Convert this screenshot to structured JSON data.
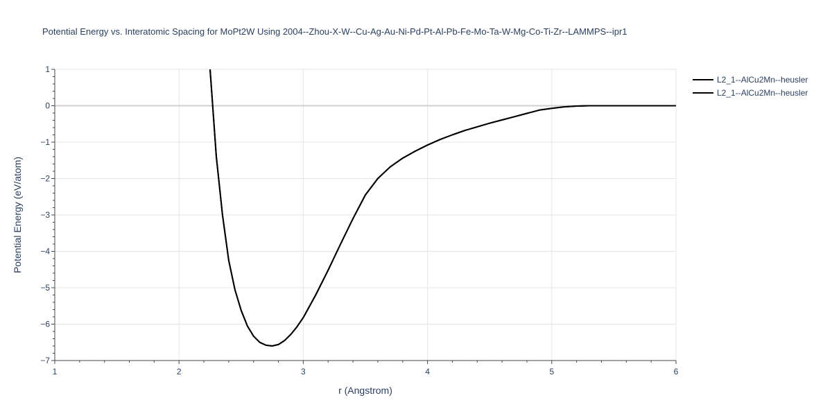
{
  "chart_data": {
    "type": "line",
    "title": "Potential Energy vs. Interatomic Spacing for MoPt2W Using 2004--Zhou-X-W--Cu-Ag-Au-Ni-Pd-Pt-Al-Pb-Fe-Mo-Ta-W-Mg-Co-Ti-Zr--LAMMPS--ipr1",
    "xlabel": "r (Angstrom)",
    "ylabel": "Potential Energy (eV/atom)",
    "xlim": [
      1,
      6
    ],
    "ylim": [
      -7,
      1
    ],
    "xticks": [
      "1",
      "2",
      "3",
      "4",
      "5",
      "6"
    ],
    "yticks": [
      "1",
      "0",
      "−1",
      "−2",
      "−3",
      "−4",
      "−5",
      "−6",
      "−7"
    ],
    "grid": true,
    "legend_position": "top-right",
    "colors": {
      "line": "#000000",
      "grid": "#e5e5e5",
      "zeroline": "#d0d0d0",
      "text": "#2a3f5f"
    },
    "series": [
      {
        "name": "L2_1--AlCu2Mn--heusler",
        "x": [
          2.25,
          2.3,
          2.35,
          2.4,
          2.45,
          2.5,
          2.55,
          2.6,
          2.65,
          2.7,
          2.75,
          2.8,
          2.85,
          2.9,
          2.95,
          3.0,
          3.1,
          3.2,
          3.3,
          3.4,
          3.5,
          3.6,
          3.7,
          3.8,
          3.9,
          4.0,
          4.1,
          4.2,
          4.3,
          4.4,
          4.5,
          4.6,
          4.7,
          4.8,
          4.9,
          5.0,
          5.1,
          5.2,
          5.3,
          5.4,
          5.5,
          5.6,
          5.8,
          6.0
        ],
        "y": [
          1.0,
          -1.4,
          -3.0,
          -4.25,
          -5.05,
          -5.62,
          -6.05,
          -6.33,
          -6.5,
          -6.58,
          -6.6,
          -6.56,
          -6.45,
          -6.28,
          -6.07,
          -5.82,
          -5.2,
          -4.52,
          -3.8,
          -3.1,
          -2.45,
          -2.0,
          -1.68,
          -1.44,
          -1.25,
          -1.08,
          -0.93,
          -0.8,
          -0.68,
          -0.58,
          -0.48,
          -0.39,
          -0.3,
          -0.21,
          -0.12,
          -0.07,
          -0.03,
          -0.01,
          0.0,
          0.0,
          0.0,
          0.0,
          0.0,
          0.0
        ]
      },
      {
        "name": "L2_1--AlCu2Mn--heusler",
        "x": [
          2.25,
          2.3,
          2.35,
          2.4,
          2.45,
          2.5,
          2.55,
          2.6,
          2.65,
          2.7,
          2.75,
          2.8,
          2.85,
          2.9,
          2.95,
          3.0,
          3.1,
          3.2,
          3.3,
          3.4,
          3.5,
          3.6,
          3.7,
          3.8,
          3.9,
          4.0,
          4.1,
          4.2,
          4.3,
          4.4,
          4.5,
          4.6,
          4.7,
          4.8,
          4.9,
          5.0,
          5.1,
          5.2,
          5.3,
          5.4,
          5.5,
          5.6,
          5.8,
          6.0
        ],
        "y": [
          1.0,
          -1.4,
          -3.0,
          -4.25,
          -5.05,
          -5.62,
          -6.05,
          -6.33,
          -6.5,
          -6.58,
          -6.6,
          -6.56,
          -6.45,
          -6.28,
          -6.07,
          -5.82,
          -5.2,
          -4.52,
          -3.8,
          -3.1,
          -2.45,
          -2.0,
          -1.68,
          -1.44,
          -1.25,
          -1.08,
          -0.93,
          -0.8,
          -0.68,
          -0.58,
          -0.48,
          -0.39,
          -0.3,
          -0.21,
          -0.12,
          -0.07,
          -0.03,
          -0.01,
          0.0,
          0.0,
          0.0,
          0.0,
          0.0,
          0.0
        ]
      }
    ]
  }
}
